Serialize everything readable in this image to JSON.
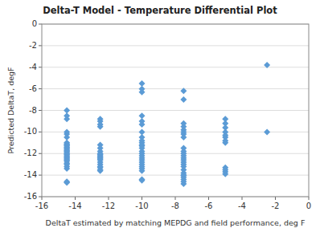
{
  "chart_data": {
    "type": "scatter",
    "title": "Delta-T  Model - Temperature Differential Plot",
    "x_label": "DeltaT estimated by matching MEPDG and  field performance, deg F",
    "y_label": "Predicted DeltaT, degF",
    "xlim": [
      -16,
      0
    ],
    "ylim": [
      -16,
      0
    ],
    "xticks": [
      -16,
      -14,
      -12,
      -10,
      -8,
      -6,
      -4,
      -2,
      0
    ],
    "yticks": [
      -16,
      -14,
      -12,
      -10,
      -8,
      -6,
      -4,
      -2,
      0
    ],
    "grid": "y",
    "color": "#5B9BD5",
    "marker": "diamond",
    "x": [
      -14.5,
      -14.5,
      -14.5,
      -14.5,
      -14.5,
      -14.5,
      -14.5,
      -14.5,
      -14.5,
      -14.5,
      -14.5,
      -14.5,
      -14.5,
      -14.5,
      -14.5,
      -14.5,
      -14.5,
      -14.5,
      -14.5,
      -14.5,
      -14.5,
      -14.5,
      -14.5,
      -14.5,
      -14.5,
      -14.5,
      -14.5,
      -14.5,
      -14.5,
      -14.5,
      -12.5,
      -12.5,
      -12.5,
      -12.5,
      -12.5,
      -12.5,
      -12.5,
      -12.5,
      -12.5,
      -12.5,
      -12.5,
      -12.5,
      -12.5,
      -12.5,
      -12.5,
      -12.5,
      -12.5,
      -12.5,
      -12.5,
      -12.5,
      -10.0,
      -10.0,
      -10.0,
      -10.0,
      -10.0,
      -10.0,
      -10.0,
      -10.0,
      -10.0,
      -10.0,
      -10.0,
      -10.0,
      -10.0,
      -10.0,
      -10.0,
      -10.0,
      -10.0,
      -10.0,
      -10.0,
      -10.0,
      -10.0,
      -10.0,
      -10.0,
      -10.0,
      -10.0,
      -7.5,
      -7.5,
      -7.5,
      -7.5,
      -7.5,
      -7.5,
      -7.5,
      -7.5,
      -7.5,
      -7.5,
      -7.5,
      -7.5,
      -7.5,
      -7.5,
      -7.5,
      -7.5,
      -7.5,
      -7.5,
      -7.5,
      -7.5,
      -7.5,
      -7.5,
      -7.5,
      -7.5,
      -7.5,
      -5.0,
      -5.0,
      -5.0,
      -5.0,
      -5.0,
      -5.0,
      -5.0,
      -5.0,
      -5.0,
      -5.0,
      -5.0,
      -5.0,
      -2.5,
      -2.5
    ],
    "values": [
      -8.0,
      -8.5,
      -8.8,
      -10.0,
      -10.2,
      -10.5,
      -11.0,
      -11.1,
      -11.2,
      -11.3,
      -11.4,
      -11.5,
      -11.6,
      -11.7,
      -11.8,
      -11.9,
      -12.0,
      -12.1,
      -12.2,
      -12.3,
      -12.4,
      -12.5,
      -12.6,
      -12.7,
      -12.9,
      -13.0,
      -13.2,
      -13.4,
      -14.6,
      -14.7,
      -8.8,
      -9.0,
      -9.3,
      -9.5,
      -11.2,
      -11.5,
      -11.8,
      -12.0,
      -12.1,
      -12.2,
      -12.3,
      -12.4,
      -12.5,
      -12.6,
      -12.8,
      -13.0,
      -13.2,
      -13.3,
      -13.5,
      -13.6,
      -5.5,
      -6.0,
      -6.3,
      -8.5,
      -9.0,
      -9.3,
      -10.0,
      -10.5,
      -10.8,
      -11.0,
      -11.2,
      -11.3,
      -11.5,
      -11.8,
      -12.0,
      -12.2,
      -12.4,
      -12.6,
      -12.8,
      -13.0,
      -13.2,
      -13.4,
      -13.6,
      -14.4,
      -14.5,
      -6.2,
      -7.0,
      -9.2,
      -9.5,
      -9.8,
      -10.0,
      -10.2,
      -10.5,
      -11.5,
      -11.8,
      -12.0,
      -12.2,
      -12.4,
      -12.6,
      -12.8,
      -13.0,
      -13.2,
      -13.5,
      -13.8,
      -14.0,
      -14.0,
      -14.2,
      -14.4,
      -14.6,
      -14.8,
      -8.8,
      -9.2,
      -9.6,
      -10.0,
      -10.3,
      -10.5,
      -10.8,
      -11.0,
      -13.3,
      -13.5,
      -13.7,
      -13.9,
      -3.8,
      -10.0
    ]
  }
}
